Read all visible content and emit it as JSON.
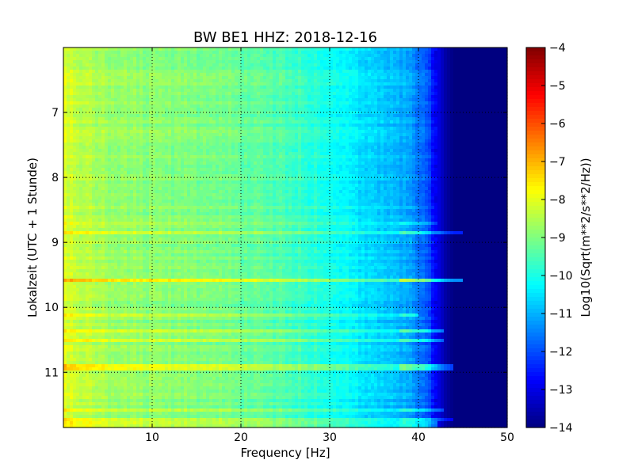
{
  "chart_data": {
    "type": "heatmap",
    "title": "BW BE1 HHZ: 2018-12-16",
    "xlabel": "Frequency [Hz]",
    "ylabel": "Lokalzeit (UTC + 1 Stunde)",
    "xlim": [
      0,
      50
    ],
    "ylim": [
      11.85,
      6.0
    ],
    "x_ticks": [
      10,
      20,
      30,
      40,
      50
    ],
    "x_tick_labels": [
      "10",
      "20",
      "30",
      "40",
      "50"
    ],
    "y_ticks": [
      7,
      8,
      9,
      10,
      11
    ],
    "y_tick_labels": [
      "7",
      "8",
      "9",
      "10",
      "11"
    ],
    "grid": true,
    "colormap": "jet",
    "colorbar": {
      "label": "Log10(Sqrt(m**2/s**2/Hz))",
      "range": [
        -14,
        -4
      ],
      "ticks": [
        -4,
        -5,
        -6,
        -7,
        -8,
        -9,
        -10,
        -11,
        -12,
        -13,
        -14
      ],
      "tick_labels": [
        "−4",
        "−5",
        "−6",
        "−7",
        "−8",
        "−9",
        "−10",
        "−11",
        "−12",
        "−13",
        "−14"
      ]
    },
    "frequency_profile": {
      "x": [
        0,
        2,
        5,
        10,
        15,
        20,
        25,
        28,
        30,
        33,
        35,
        38,
        40,
        41,
        42,
        43,
        44,
        50
      ],
      "value": [
        -8.1,
        -8.4,
        -8.7,
        -8.9,
        -9.0,
        -9.2,
        -9.5,
        -9.8,
        -10.0,
        -10.4,
        -10.6,
        -11.0,
        -11.5,
        -12.0,
        -12.8,
        -13.6,
        -14.0,
        -14.0
      ]
    },
    "time_bands": [
      {
        "time": 9.58,
        "strength": 1.2,
        "max_freq": 45
      },
      {
        "time": 10.35,
        "strength": 0.8,
        "max_freq": 43
      },
      {
        "time": 10.5,
        "strength": 0.7,
        "max_freq": 43
      },
      {
        "time": 10.92,
        "strength": 0.8,
        "max_freq": 44
      },
      {
        "time": 8.85,
        "strength": 0.7,
        "max_freq": 45
      },
      {
        "time": 8.72,
        "strength": 0.4,
        "max_freq": 42
      },
      {
        "time": 10.12,
        "strength": 0.6,
        "max_freq": 40
      },
      {
        "time": 11.58,
        "strength": 0.6,
        "max_freq": 43
      },
      {
        "time": 11.72,
        "strength": 0.5,
        "max_freq": 44
      },
      {
        "time": 11.8,
        "strength": 0.5,
        "max_freq": 42
      }
    ]
  }
}
